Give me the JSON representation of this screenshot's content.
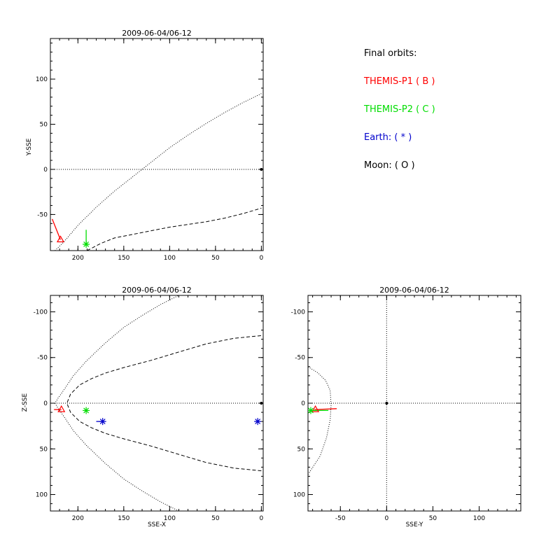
{
  "colors": {
    "themis_p1": "#ff0000",
    "themis_p2": "#00dd00",
    "earth": "#0000cc",
    "moon": "#000000",
    "axis": "#000000"
  },
  "legend": {
    "heading": "Final orbits:",
    "p1": "THEMIS-P1 ( B )",
    "p2": "THEMIS-P2 ( C )",
    "earth": "Earth: ( * )",
    "moon": "Moon: ( O )"
  },
  "chart_data": [
    {
      "id": "xy",
      "type": "line",
      "title": "2009-06-04/06-12",
      "xlabel": "",
      "ylabel": "Y-SSE",
      "xlim": [
        230,
        -2
      ],
      "ylim": [
        145,
        -90
      ],
      "xticks": [
        200,
        150,
        100,
        50,
        0
      ],
      "yticks": [
        -50,
        0,
        50,
        100
      ],
      "minor_x": 10,
      "minor_y": 10,
      "series": [
        {
          "role": "magnetopause",
          "style": "dotted",
          "x": [
            225,
            215,
            200,
            180,
            160,
            140,
            120,
            100,
            80,
            60,
            40,
            20,
            0
          ],
          "y": [
            -90,
            -80,
            -62,
            -42,
            -24,
            -8,
            8,
            24,
            38,
            51,
            63,
            74,
            84
          ]
        },
        {
          "role": "bow-shock",
          "style": "dashed",
          "x": [
            190,
            175,
            160,
            140,
            120,
            100,
            80,
            60,
            40,
            20,
            0
          ],
          "y": [
            -90,
            -82,
            -76,
            -72,
            -68,
            -64,
            -61,
            -58,
            -54,
            -49,
            -43
          ]
        },
        {
          "role": "zero-line",
          "style": "dotted",
          "x": [
            230,
            0
          ],
          "y": [
            0,
            0
          ]
        },
        {
          "role": "p1-track",
          "color": "themis_p1",
          "style": "solid",
          "x": [
            228,
            219
          ],
          "y": [
            -55,
            -78
          ]
        },
        {
          "role": "p2-track",
          "color": "themis_p2",
          "style": "solid",
          "x": [
            191,
            191
          ],
          "y": [
            -67,
            -83
          ]
        }
      ],
      "markers": [
        {
          "label": "themis-p1",
          "shape": "triangle",
          "color": "themis_p1",
          "x": 219,
          "y": -78
        },
        {
          "label": "themis-p2",
          "shape": "asterisk",
          "color": "themis_p2",
          "x": 191,
          "y": -83
        },
        {
          "label": "earth",
          "shape": "dot",
          "color": "moon",
          "x": 0,
          "y": 0
        }
      ]
    },
    {
      "id": "xz",
      "type": "line",
      "title": "2009-06-04/06-12",
      "xlabel": "SSE-X",
      "ylabel": "Z-SSE",
      "xlim": [
        230,
        -2
      ],
      "ylim": [
        -118,
        118
      ],
      "xticks": [
        200,
        150,
        100,
        50,
        0
      ],
      "yticks": [
        -100,
        -50,
        0,
        50,
        100
      ],
      "minor_x": 10,
      "minor_y": 10,
      "series": [
        {
          "role": "magnetopause",
          "style": "dotted",
          "x": [
            90,
            110,
            130,
            150,
            170,
            190,
            205,
            215,
            222,
            225,
            222,
            215,
            205,
            190,
            170,
            150,
            130,
            110,
            90
          ],
          "y": [
            118,
            108,
            96,
            83,
            66,
            47,
            30,
            15,
            5,
            0,
            -5,
            -15,
            -30,
            -47,
            -66,
            -83,
            -96,
            -108,
            -118
          ]
        },
        {
          "role": "bow-shock",
          "style": "dashed",
          "x": [
            0,
            30,
            60,
            90,
            120,
            150,
            170,
            185,
            198,
            208,
            212,
            208,
            198,
            185,
            170,
            150,
            120,
            90,
            60,
            30,
            0
          ],
          "y": [
            74,
            71,
            65,
            56,
            47,
            39,
            33,
            27,
            20,
            10,
            0,
            -10,
            -20,
            -27,
            -33,
            -39,
            -47,
            -56,
            -65,
            -71,
            -74
          ]
        },
        {
          "role": "zero-line",
          "style": "dotted",
          "x": [
            230,
            0
          ],
          "y": [
            0,
            0
          ]
        },
        {
          "role": "p1-track",
          "color": "themis_p1",
          "style": "solid",
          "x": [
            226,
            218
          ],
          "y": [
            7,
            7
          ]
        },
        {
          "role": "earth-track",
          "color": "earth",
          "style": "solid",
          "x": [
            180,
            173
          ],
          "y": [
            20,
            20
          ]
        }
      ],
      "markers": [
        {
          "label": "themis-p1",
          "shape": "triangle",
          "color": "themis_p1",
          "x": 218,
          "y": 7
        },
        {
          "label": "themis-p2",
          "shape": "asterisk",
          "color": "themis_p2",
          "x": 191,
          "y": 8
        },
        {
          "label": "earth",
          "shape": "asterisk",
          "color": "earth",
          "x": 173,
          "y": 20
        },
        {
          "label": "moon-edge",
          "shape": "asterisk",
          "color": "earth",
          "x": 4,
          "y": 20
        },
        {
          "label": "origin",
          "shape": "dot",
          "color": "moon",
          "x": 0,
          "y": 0
        }
      ]
    },
    {
      "id": "yz",
      "type": "line",
      "title": "2009-06-04/06-12",
      "xlabel": "SSE-Y",
      "ylabel": "",
      "xlim": [
        -85,
        145
      ],
      "ylim": [
        -118,
        118
      ],
      "xticks": [
        -50,
        0,
        50,
        100
      ],
      "yticks": [
        -100,
        -50,
        0,
        50,
        100
      ],
      "minor_x": 10,
      "minor_y": 10,
      "series": [
        {
          "role": "magnetopause",
          "style": "dotted",
          "x": [
            -85,
            -72,
            -65,
            -61,
            -60,
            -61,
            -66,
            -74,
            -85
          ],
          "y": [
            78,
            58,
            38,
            18,
            2,
            -14,
            -25,
            -33,
            -40
          ]
        },
        {
          "role": "zero-line-h",
          "style": "dotted",
          "x": [
            -85,
            145
          ],
          "y": [
            0,
            0
          ]
        },
        {
          "role": "zero-line-v",
          "style": "dotted",
          "x": [
            0,
            0
          ],
          "y": [
            -118,
            118
          ]
        },
        {
          "role": "p1-track",
          "color": "themis_p1",
          "style": "solid",
          "x": [
            -78,
            -54
          ],
          "y": [
            7,
            6
          ]
        },
        {
          "role": "p2-track",
          "color": "themis_p2",
          "style": "solid",
          "x": [
            -82,
            -63
          ],
          "y": [
            8,
            8
          ]
        }
      ],
      "markers": [
        {
          "label": "themis-p1",
          "shape": "triangle",
          "color": "themis_p1",
          "x": -77,
          "y": 7
        },
        {
          "label": "themis-p2",
          "shape": "asterisk",
          "color": "themis_p2",
          "x": -82,
          "y": 8
        },
        {
          "label": "earth",
          "shape": "dot",
          "color": "moon",
          "x": 0,
          "y": 0
        }
      ]
    }
  ]
}
